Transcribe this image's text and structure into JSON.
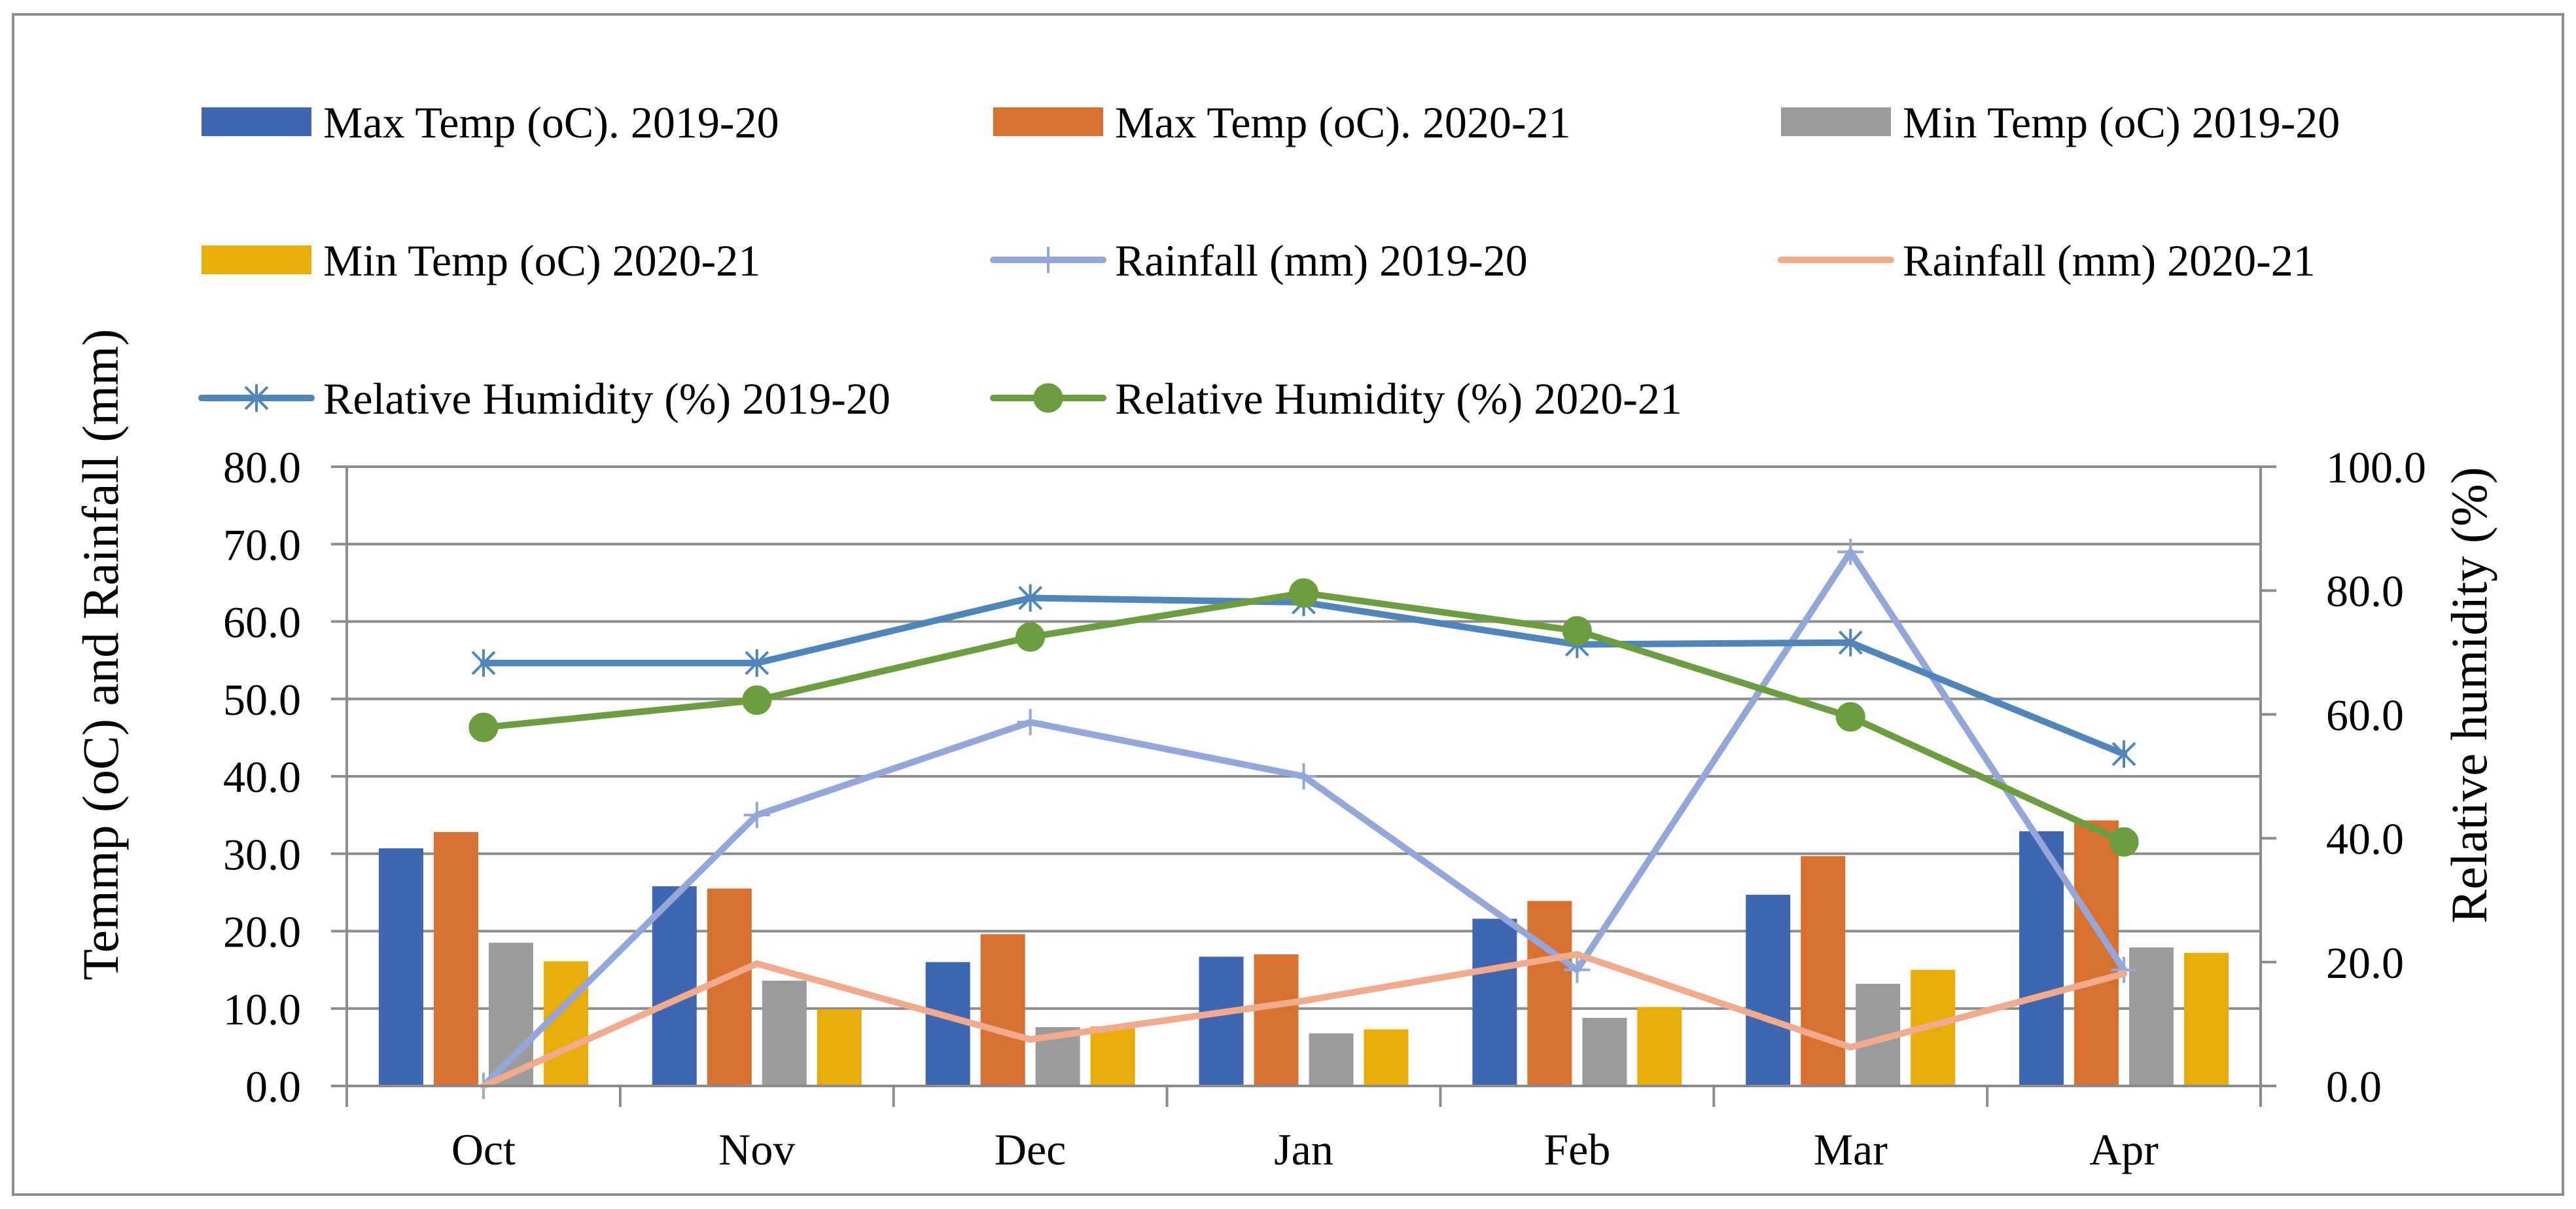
{
  "chart_data": {
    "type": "bar-line-combo",
    "categories": [
      "Oct",
      "Nov",
      "Dec",
      "Jan",
      "Feb",
      "Mar",
      "Apr"
    ],
    "ylabel": "Temmp (oC) and Rainfall (mm)",
    "y2label": "Relative humidity (%)",
    "ylim": [
      0,
      80
    ],
    "y2lim": [
      0,
      100
    ],
    "yticks": [
      "0.0",
      "10.0",
      "20.0",
      "30.0",
      "40.0",
      "50.0",
      "60.0",
      "70.0",
      "80.0"
    ],
    "y2ticks": [
      "0.0",
      "20.0",
      "40.0",
      "60.0",
      "80.0",
      "100.0"
    ],
    "grid": true,
    "legend_position": "top",
    "bar_series": [
      {
        "name": "Max Temp (oC). 2019-20",
        "color": "#3F67B1",
        "values": [
          30.7,
          25.8,
          16.0,
          16.7,
          21.6,
          24.7,
          32.9
        ]
      },
      {
        "name": "Max Temp (oC). 2020-21",
        "color": "#D8702F",
        "values": [
          32.8,
          25.5,
          19.6,
          17.0,
          23.9,
          29.7,
          34.3
        ]
      },
      {
        "name": "Min Temp (oC) 2019-20",
        "color": "#9B9B9B",
        "values": [
          18.5,
          13.6,
          7.6,
          6.8,
          8.8,
          13.2,
          17.9
        ]
      },
      {
        "name": "Min Temp (oC) 2020-21",
        "color": "#E9AD0B",
        "values": [
          16.1,
          9.9,
          7.7,
          7.3,
          10.2,
          15.0,
          17.2
        ]
      }
    ],
    "line_series": [
      {
        "name": "Rainfall (mm) 2019-20",
        "color": "#94A7DA",
        "axis": "left",
        "marker": "plus",
        "values": [
          0.0,
          35.0,
          47.0,
          40.0,
          15.0,
          69.0,
          15.0
        ]
      },
      {
        "name": "Rainfall (mm) 2020-21",
        "color": "#F2AA8D",
        "axis": "left",
        "marker": "none",
        "values": [
          0.0,
          15.8,
          6.0,
          11.0,
          17.0,
          5.0,
          14.5
        ]
      },
      {
        "name": "Relative Humidity (%) 2019-20",
        "color": "#4E86BC",
        "axis": "right",
        "marker": "star",
        "values": [
          68.3,
          68.3,
          78.8,
          78.1,
          71.3,
          71.6,
          53.6
        ]
      },
      {
        "name": "Relative Humidity (%) 2020-21",
        "color": "#6C9E3F",
        "axis": "right",
        "marker": "circle",
        "values": [
          57.9,
          62.3,
          72.5,
          79.6,
          73.5,
          59.6,
          39.4
        ]
      }
    ]
  }
}
